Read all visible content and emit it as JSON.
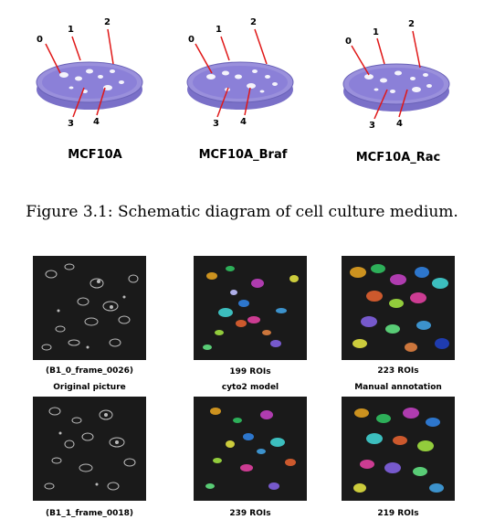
{
  "top": {
    "dishes": [
      {
        "label": "MCF10A",
        "numbers": [
          "0",
          "1",
          "2",
          "3",
          "4"
        ]
      },
      {
        "label": "MCF10A_Braf",
        "numbers": [
          "0",
          "1",
          "2",
          "3",
          "4"
        ]
      },
      {
        "label": "MCF10A_Rac",
        "numbers": [
          "0",
          "1",
          "2",
          "3",
          "4"
        ]
      }
    ],
    "caption": "Figure 3.1: Schematic diagram of cell culture medium."
  },
  "grid": {
    "row1": [
      {
        "line1": "(B1_0_frame_0026)",
        "line2": "Original picture"
      },
      {
        "line1": "199 ROIs",
        "line2": "cyto2 model"
      },
      {
        "line1": "223 ROIs",
        "line2": "Manual annotation"
      }
    ],
    "row2": [
      {
        "line1": "(B1_1_frame_0018)"
      },
      {
        "line1": "239 ROIs"
      },
      {
        "line1": "219 ROIs"
      }
    ]
  },
  "colors": {
    "dish_fill": "#8b80d8",
    "dish_rim": "#b9b3e8",
    "arrow": "#e01818"
  }
}
